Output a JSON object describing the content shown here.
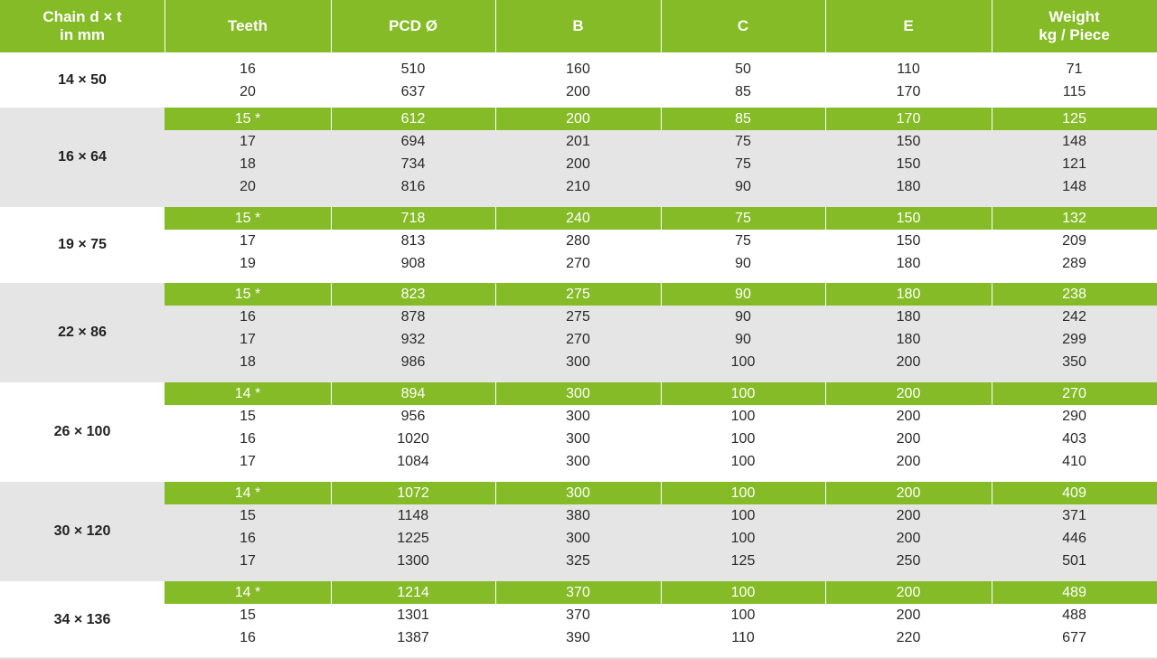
{
  "headers": [
    {
      "line1": "Chain d × t",
      "line2": "in mm"
    },
    {
      "line1": "Teeth",
      "line2": ""
    },
    {
      "line1": "PCD Ø",
      "line2": ""
    },
    {
      "line1": "B",
      "line2": ""
    },
    {
      "line1": "C",
      "line2": ""
    },
    {
      "line1": "E",
      "line2": ""
    },
    {
      "line1": "Weight",
      "line2": "kg / Piece"
    }
  ],
  "colors": {
    "accent_green": "#84bb26",
    "shade_gray": "#e5e5e5",
    "text": "#2a2a2a",
    "white": "#ffffff"
  },
  "groups": [
    {
      "chain": "14 × 50",
      "shaded": false,
      "rows": [
        {
          "highlight": false,
          "cells": [
            "16",
            "510",
            "160",
            "50",
            "110",
            "71"
          ]
        },
        {
          "highlight": false,
          "cells": [
            "20",
            "637",
            "200",
            "85",
            "170",
            "115"
          ]
        }
      ]
    },
    {
      "chain": "16 × 64",
      "shaded": true,
      "rows": [
        {
          "highlight": true,
          "cells": [
            "15 *",
            "612",
            "200",
            "85",
            "170",
            "125"
          ]
        },
        {
          "highlight": false,
          "cells": [
            "17",
            "694",
            "201",
            "75",
            "150",
            "148"
          ]
        },
        {
          "highlight": false,
          "cells": [
            "18",
            "734",
            "200",
            "75",
            "150",
            "121"
          ]
        },
        {
          "highlight": false,
          "cells": [
            "20",
            "816",
            "210",
            "90",
            "180",
            "148"
          ]
        }
      ]
    },
    {
      "chain": "19 × 75",
      "shaded": false,
      "rows": [
        {
          "highlight": true,
          "cells": [
            "15 *",
            "718",
            "240",
            "75",
            "150",
            "132"
          ]
        },
        {
          "highlight": false,
          "cells": [
            "17",
            "813",
            "280",
            "75",
            "150",
            "209"
          ]
        },
        {
          "highlight": false,
          "cells": [
            "19",
            "908",
            "270",
            "90",
            "180",
            "289"
          ]
        }
      ]
    },
    {
      "chain": "22 × 86",
      "shaded": true,
      "rows": [
        {
          "highlight": true,
          "cells": [
            "15 *",
            "823",
            "275",
            "90",
            "180",
            "238"
          ]
        },
        {
          "highlight": false,
          "cells": [
            "16",
            "878",
            "275",
            "90",
            "180",
            "242"
          ]
        },
        {
          "highlight": false,
          "cells": [
            "17",
            "932",
            "270",
            "90",
            "180",
            "299"
          ]
        },
        {
          "highlight": false,
          "cells": [
            "18",
            "986",
            "300",
            "100",
            "200",
            "350"
          ]
        }
      ]
    },
    {
      "chain": "26 × 100",
      "shaded": false,
      "rows": [
        {
          "highlight": true,
          "cells": [
            "14 *",
            "894",
            "300",
            "100",
            "200",
            "270"
          ]
        },
        {
          "highlight": false,
          "cells": [
            "15",
            "956",
            "300",
            "100",
            "200",
            "290"
          ]
        },
        {
          "highlight": false,
          "cells": [
            "16",
            "1020",
            "300",
            "100",
            "200",
            "403"
          ]
        },
        {
          "highlight": false,
          "cells": [
            "17",
            "1084",
            "300",
            "100",
            "200",
            "410"
          ]
        }
      ]
    },
    {
      "chain": "30 × 120",
      "shaded": true,
      "rows": [
        {
          "highlight": true,
          "cells": [
            "14 *",
            "1072",
            "300",
            "100",
            "200",
            "409"
          ]
        },
        {
          "highlight": false,
          "cells": [
            "15",
            "1148",
            "380",
            "100",
            "200",
            "371"
          ]
        },
        {
          "highlight": false,
          "cells": [
            "16",
            "1225",
            "300",
            "100",
            "200",
            "446"
          ]
        },
        {
          "highlight": false,
          "cells": [
            "17",
            "1300",
            "325",
            "125",
            "250",
            "501"
          ]
        }
      ]
    },
    {
      "chain": "34 × 136",
      "shaded": false,
      "rows": [
        {
          "highlight": true,
          "cells": [
            "14 *",
            "1214",
            "370",
            "100",
            "200",
            "489"
          ]
        },
        {
          "highlight": false,
          "cells": [
            "15",
            "1301",
            "370",
            "100",
            "200",
            "488"
          ]
        },
        {
          "highlight": false,
          "cells": [
            "16",
            "1387",
            "390",
            "110",
            "220",
            "677"
          ]
        }
      ]
    }
  ]
}
